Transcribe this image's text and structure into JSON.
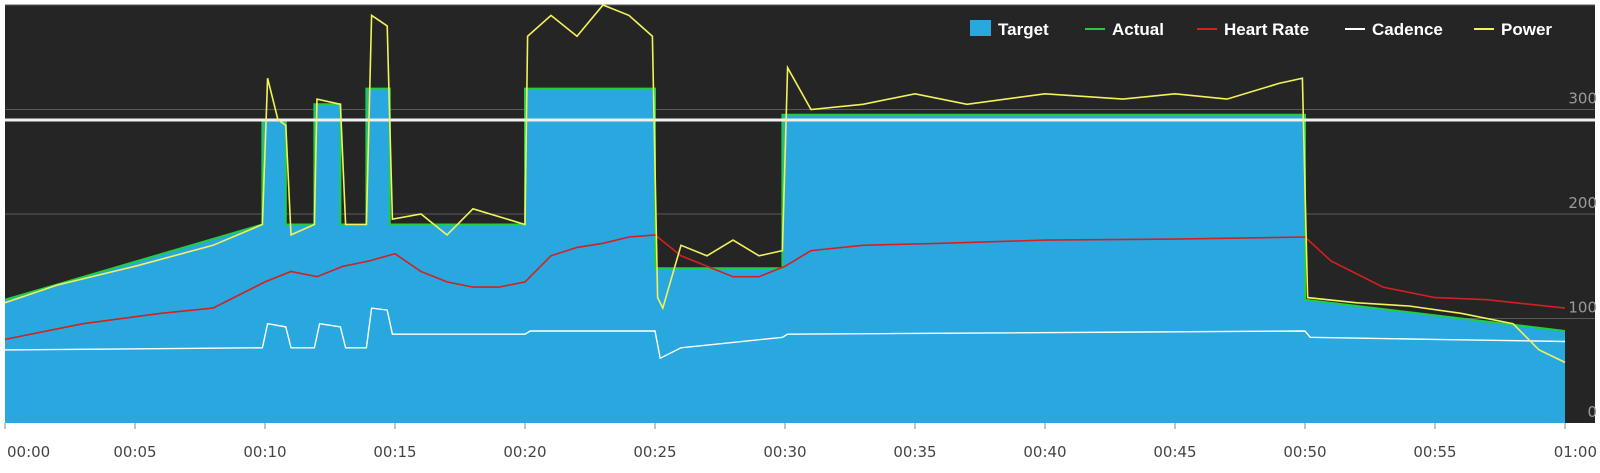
{
  "chart_data": {
    "type": "area",
    "title": "",
    "xlabel": "",
    "ylabel": "",
    "x_unit": "minutes",
    "xlim": [
      0,
      60
    ],
    "ylim": [
      0,
      400
    ],
    "x_ticks": [
      "00:00",
      "00:05",
      "00:10",
      "00:15",
      "00:20",
      "00:25",
      "00:30",
      "00:35",
      "00:40",
      "00:45",
      "00:50",
      "00:55",
      "01:00"
    ],
    "y_ticks": [
      "0",
      "100",
      "200",
      "300"
    ],
    "grid": true,
    "legend_position": "top-right",
    "reference_line": 290,
    "colors": {
      "background": "#252526",
      "grid": "#5a5a5a",
      "target": "#29a8df",
      "actual": "#22cc44",
      "heart_rate": "#d42020",
      "cadence": "#ffffff",
      "power": "#f2f25a",
      "reference": "#f0f0f0"
    },
    "legend": [
      {
        "key": "target",
        "label": "Target"
      },
      {
        "key": "actual",
        "label": "Actual"
      },
      {
        "key": "heart_rate",
        "label": "Heart Rate"
      },
      {
        "key": "cadence",
        "label": "Cadence"
      },
      {
        "key": "power",
        "label": "Power"
      }
    ],
    "series": [
      {
        "key": "target",
        "name": "Target",
        "points": [
          [
            0,
            118
          ],
          [
            9.9,
            190
          ],
          [
            9.9,
            290
          ],
          [
            10.8,
            290
          ],
          [
            10.8,
            190
          ],
          [
            11.9,
            190
          ],
          [
            11.9,
            305
          ],
          [
            12.9,
            305
          ],
          [
            12.9,
            190
          ],
          [
            13.9,
            190
          ],
          [
            13.9,
            320
          ],
          [
            14.8,
            320
          ],
          [
            14.8,
            190
          ],
          [
            20,
            190
          ],
          [
            20,
            320
          ],
          [
            25,
            320
          ],
          [
            25,
            148
          ],
          [
            29.9,
            148
          ],
          [
            29.9,
            295
          ],
          [
            50,
            295
          ],
          [
            50,
            118
          ],
          [
            60,
            88
          ]
        ]
      },
      {
        "key": "power",
        "name": "Power",
        "points": [
          [
            0,
            115
          ],
          [
            2,
            132
          ],
          [
            5,
            150
          ],
          [
            8,
            170
          ],
          [
            9.9,
            190
          ],
          [
            10.1,
            330
          ],
          [
            10.5,
            290
          ],
          [
            10.8,
            285
          ],
          [
            11,
            180
          ],
          [
            11.9,
            190
          ],
          [
            12,
            310
          ],
          [
            12.9,
            305
          ],
          [
            13.1,
            190
          ],
          [
            13.9,
            190
          ],
          [
            14.1,
            390
          ],
          [
            14.7,
            380
          ],
          [
            14.9,
            195
          ],
          [
            16,
            200
          ],
          [
            17,
            180
          ],
          [
            18,
            205
          ],
          [
            20,
            190
          ],
          [
            20.1,
            370
          ],
          [
            21,
            390
          ],
          [
            22,
            370
          ],
          [
            23,
            400
          ],
          [
            24,
            390
          ],
          [
            24.9,
            370
          ],
          [
            25.1,
            120
          ],
          [
            25.3,
            110
          ],
          [
            26,
            170
          ],
          [
            27,
            160
          ],
          [
            28,
            175
          ],
          [
            29,
            160
          ],
          [
            29.9,
            165
          ],
          [
            30.1,
            340
          ],
          [
            31,
            300
          ],
          [
            33,
            305
          ],
          [
            35,
            315
          ],
          [
            37,
            305
          ],
          [
            40,
            315
          ],
          [
            43,
            310
          ],
          [
            45,
            315
          ],
          [
            47,
            310
          ],
          [
            49,
            325
          ],
          [
            49.9,
            330
          ],
          [
            50.1,
            120
          ],
          [
            52,
            115
          ],
          [
            54,
            112
          ],
          [
            56,
            105
          ],
          [
            58,
            95
          ],
          [
            59,
            70
          ],
          [
            60,
            58
          ]
        ]
      },
      {
        "key": "heart_rate",
        "name": "Heart Rate",
        "points": [
          [
            0,
            80
          ],
          [
            3,
            95
          ],
          [
            6,
            105
          ],
          [
            8,
            110
          ],
          [
            10,
            135
          ],
          [
            11,
            145
          ],
          [
            12,
            140
          ],
          [
            13,
            150
          ],
          [
            14,
            155
          ],
          [
            15,
            162
          ],
          [
            16,
            145
          ],
          [
            17,
            135
          ],
          [
            18,
            130
          ],
          [
            19,
            130
          ],
          [
            20,
            135
          ],
          [
            21,
            160
          ],
          [
            22,
            168
          ],
          [
            23,
            172
          ],
          [
            24,
            178
          ],
          [
            25,
            180
          ],
          [
            26,
            160
          ],
          [
            27,
            150
          ],
          [
            28,
            140
          ],
          [
            29,
            140
          ],
          [
            30,
            150
          ],
          [
            31,
            165
          ],
          [
            33,
            170
          ],
          [
            36,
            172
          ],
          [
            40,
            175
          ],
          [
            45,
            176
          ],
          [
            50,
            178
          ],
          [
            51,
            155
          ],
          [
            53,
            130
          ],
          [
            55,
            120
          ],
          [
            57,
            118
          ],
          [
            60,
            110
          ]
        ]
      },
      {
        "key": "cadence",
        "name": "Cadence",
        "points": [
          [
            0,
            70
          ],
          [
            9.9,
            72
          ],
          [
            10.1,
            95
          ],
          [
            10.8,
            92
          ],
          [
            11,
            72
          ],
          [
            11.9,
            72
          ],
          [
            12.1,
            95
          ],
          [
            12.9,
            92
          ],
          [
            13.1,
            72
          ],
          [
            13.9,
            72
          ],
          [
            14.1,
            110
          ],
          [
            14.7,
            108
          ],
          [
            14.9,
            85
          ],
          [
            20,
            85
          ],
          [
            20.2,
            88
          ],
          [
            25,
            88
          ],
          [
            25.2,
            62
          ],
          [
            26,
            72
          ],
          [
            29.9,
            82
          ],
          [
            30.1,
            85
          ],
          [
            50,
            88
          ],
          [
            50.2,
            82
          ],
          [
            55,
            80
          ],
          [
            60,
            78
          ]
        ]
      }
    ]
  }
}
